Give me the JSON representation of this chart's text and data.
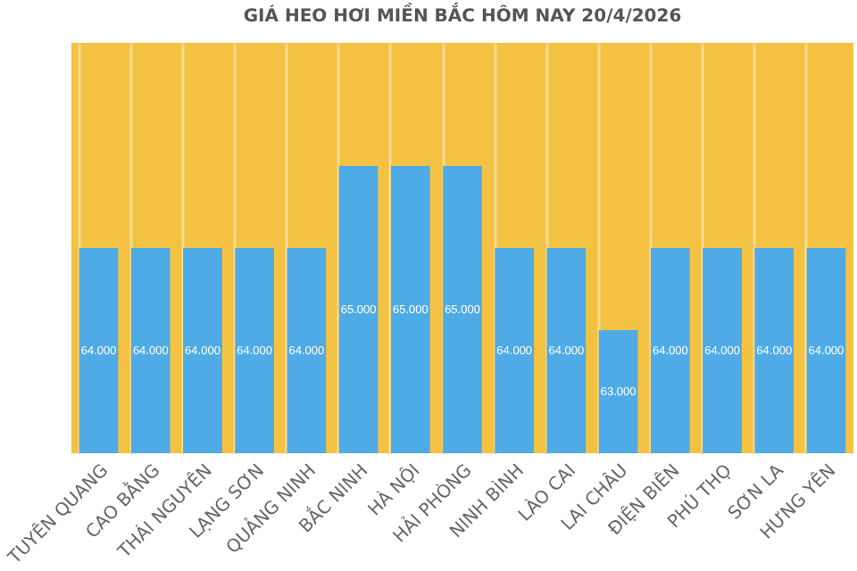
{
  "chart_data": {
    "type": "bar",
    "title": "GIÁ HEO HƠI MIỀN BẮC HÔM NAY 20/4/2026",
    "categories": [
      "TUYÊN QUANG",
      "CAO BẰNG",
      "THÁI NGUYÊN",
      "LẠNG SƠN",
      "QUẢNG NINH",
      "BẮC NINH",
      "HÀ NỘI",
      "HẢI PHÒNG",
      "NINH BÌNH",
      "LÀO CAI",
      "LAI CHÂU",
      "ĐIỆN BIÊN",
      "PHÚ THỌ",
      "SƠN LA",
      "HƯNG YÊN"
    ],
    "values": [
      64000,
      64000,
      64000,
      64000,
      64000,
      65000,
      65000,
      65000,
      64000,
      64000,
      63000,
      64000,
      64000,
      64000,
      64000
    ],
    "value_labels": [
      "64.000",
      "64.000",
      "64.000",
      "64.000",
      "64.000",
      "65.000",
      "65.000",
      "65.000",
      "64.000",
      "64.000",
      "63.000",
      "64.000",
      "64.000",
      "64.000",
      "64.000"
    ],
    "color": "#4fabe6",
    "ylim": [
      61500,
      66500
    ],
    "tick_labels": "x",
    "grid": "x"
  }
}
